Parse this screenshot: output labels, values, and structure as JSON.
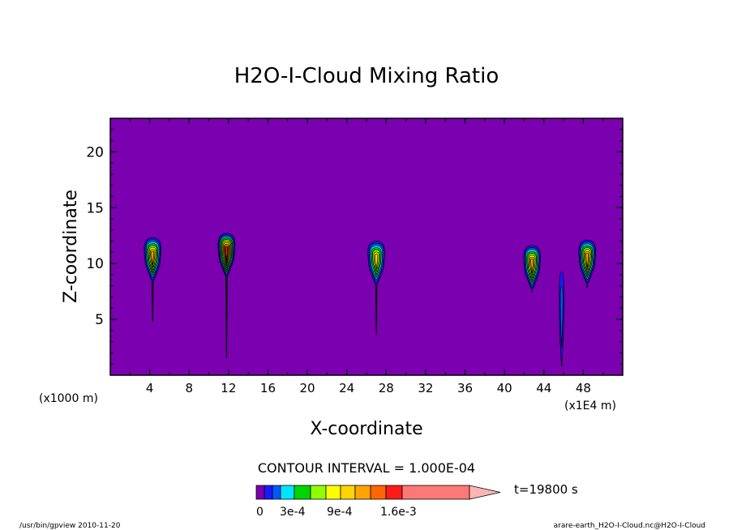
{
  "chart_data": {
    "type": "heatmap",
    "title": "H2O-I-Cloud Mixing Ratio",
    "xlabel": "X-coordinate",
    "ylabel": "Z-coordinate",
    "x_units_left": "(x1000 m)",
    "x_units_right": "(x1E4 m)",
    "xlim": [
      0,
      52
    ],
    "ylim": [
      0,
      23
    ],
    "x_ticks": [
      4,
      8,
      12,
      16,
      20,
      24,
      28,
      32,
      36,
      40,
      44,
      48
    ],
    "y_ticks": [
      5,
      10,
      15,
      20
    ],
    "x_tick_labels": [
      "4",
      "8",
      "12",
      "16",
      "20",
      "24",
      "28",
      "32",
      "36",
      "40",
      "44",
      "48"
    ],
    "y_tick_labels": [
      "5",
      "10",
      "15",
      "20"
    ],
    "background_color": "#7a00b0",
    "contour_interval_text": "CONTOUR INTERVAL = 1.000E-04",
    "time_label": "t=19800 s",
    "colorbar": {
      "colors": [
        "#7a00b0",
        "#1a1aff",
        "#0059ff",
        "#00e5ff",
        "#00d400",
        "#90ff00",
        "#ffff00",
        "#ffd400",
        "#ffa400",
        "#ff6600",
        "#ff1a1a",
        "#ff7878",
        "#ffb4b4"
      ],
      "labels": [
        "0",
        "3e-4",
        "9e-4",
        "1.6e-3"
      ]
    },
    "clouds": [
      {
        "x": 4.3,
        "top": 12.3,
        "base": 4.8,
        "max_level": 7
      },
      {
        "x": 11.8,
        "top": 12.7,
        "base": 1.5,
        "max_level": 9
      },
      {
        "x": 27.0,
        "top": 12.0,
        "base": 3.6,
        "max_level": 6
      },
      {
        "x": 42.8,
        "top": 11.6,
        "base": 7.4,
        "max_level": 7
      },
      {
        "x": 45.8,
        "top": 9.3,
        "base": 0.8,
        "max_level": 1
      },
      {
        "x": 48.4,
        "top": 12.1,
        "base": 7.8,
        "max_level": 7
      }
    ]
  },
  "footer": {
    "left": "/usr/bin/gpview  2010-11-20",
    "right": "arare-earth_H2O-I-Cloud.nc@H2O-I-Cloud"
  }
}
